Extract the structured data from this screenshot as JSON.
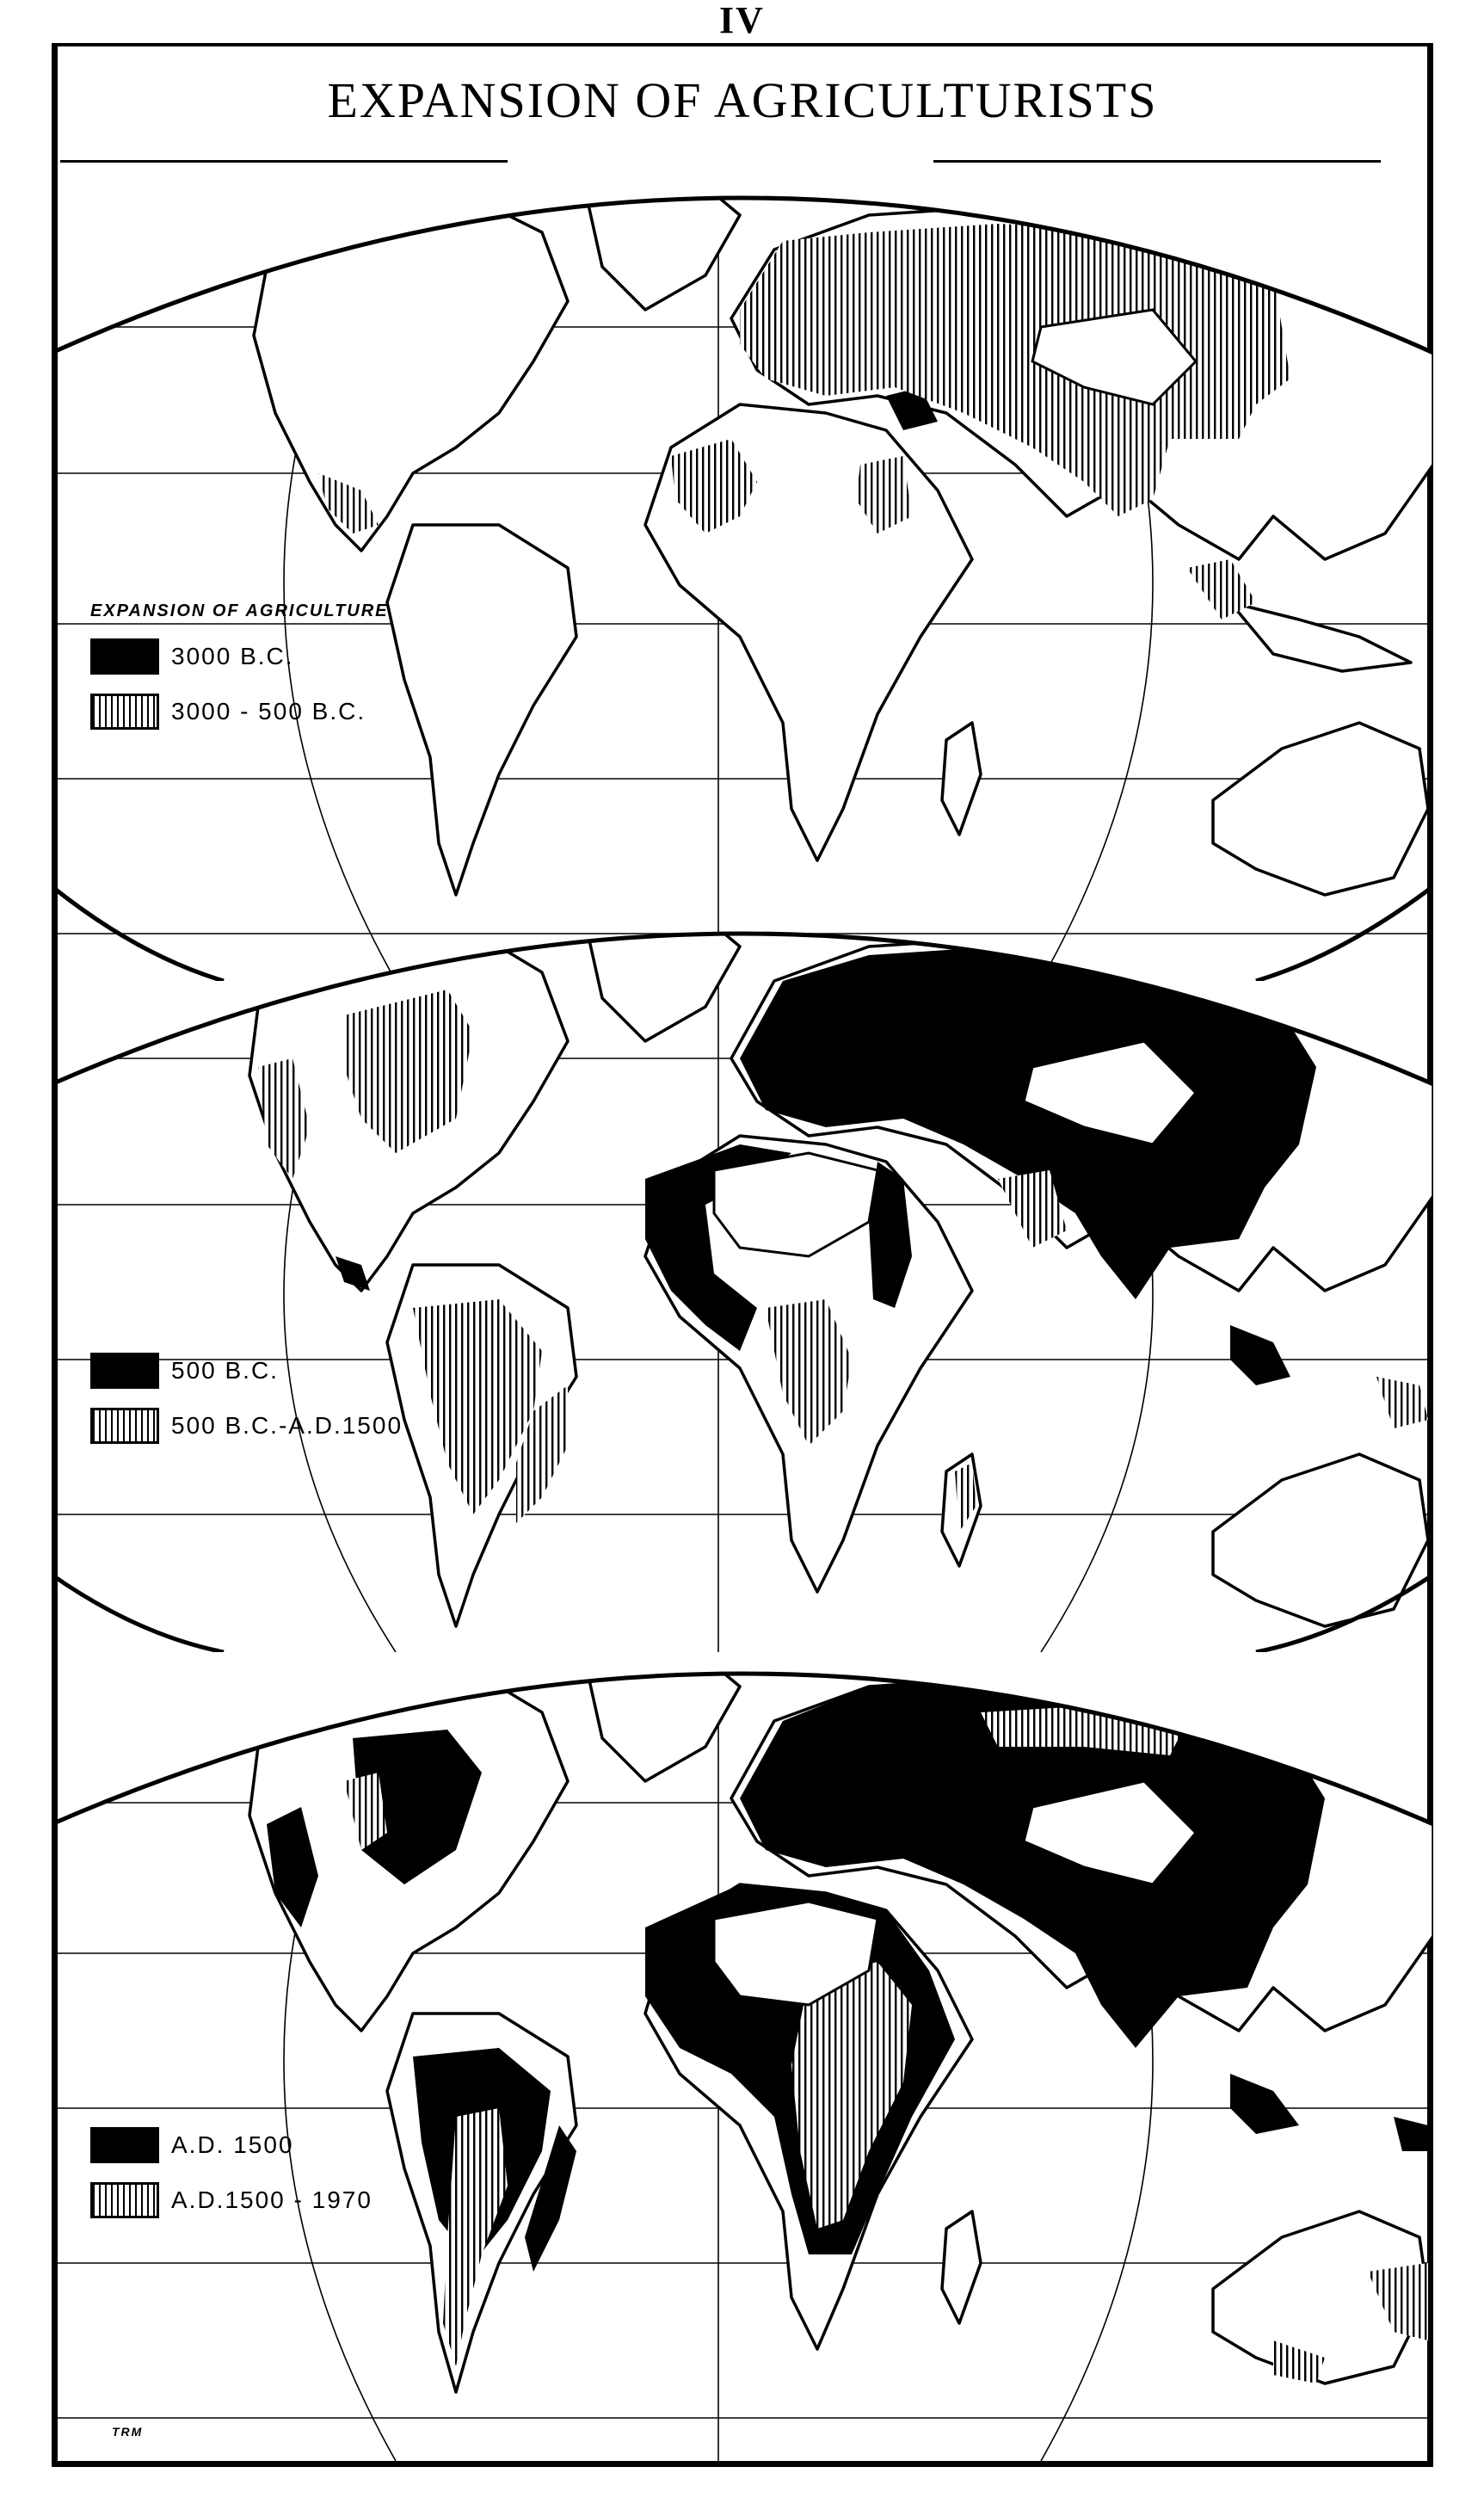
{
  "plate": {
    "number": "IV",
    "title": "EXPANSION OF AGRICULTURISTS",
    "credit": "TRM"
  },
  "colors": {
    "ink": "#000000",
    "paper": "#ffffff"
  },
  "maps": [
    {
      "id": "map-3000bc",
      "legend_heading": "EXPANSION OF AGRICULTURE",
      "legend": [
        {
          "label": "3000 B.C.",
          "pattern": "solid"
        },
        {
          "label": "3000 - 500 B.C.",
          "pattern": "hatch"
        }
      ]
    },
    {
      "id": "map-500bc",
      "legend": [
        {
          "label": "500 B.C.",
          "pattern": "solid"
        },
        {
          "label": "500 B.C.-A.D.1500",
          "pattern": "hatch"
        }
      ]
    },
    {
      "id": "map-ad1500",
      "legend": [
        {
          "label": "A.D. 1500",
          "pattern": "solid"
        },
        {
          "label": "A.D.1500 - 1970",
          "pattern": "hatch"
        }
      ]
    }
  ]
}
